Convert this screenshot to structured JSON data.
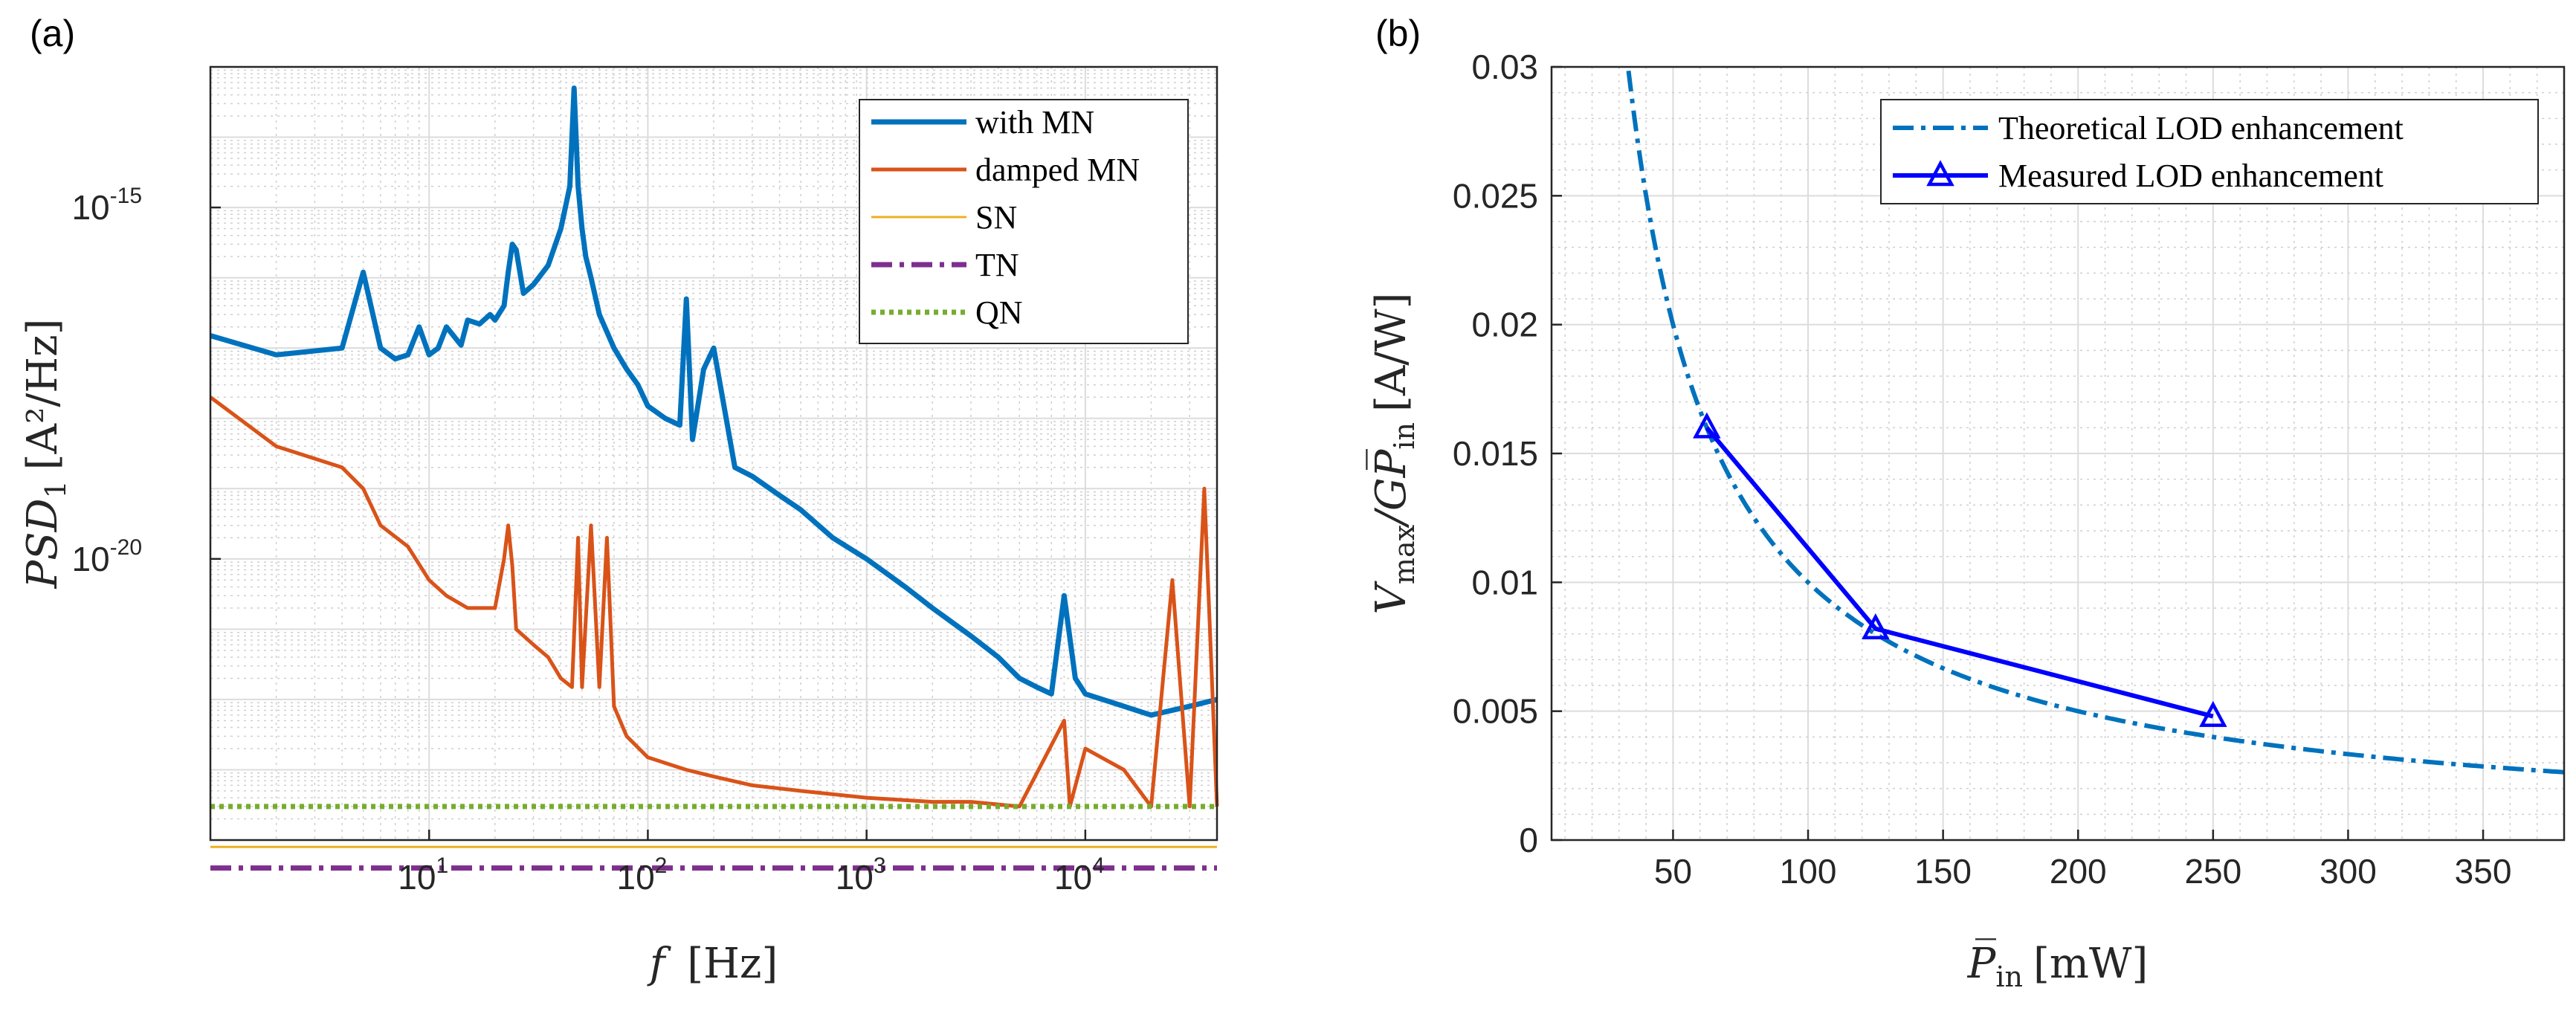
{
  "chart_data": [
    {
      "panel": "(a)",
      "type": "line",
      "xscale": "log",
      "yscale": "log",
      "xlabel_var": "f",
      "xlabel_unit": "[Hz]",
      "ylabel_var": "PSD",
      "ylabel_sub": "1",
      "ylabel_unit": "[A²/Hz]",
      "xlim": [
        1,
        40000
      ],
      "ylim": [
        1e-24,
        1e-13
      ],
      "xticks": [
        {
          "value": 10,
          "base": "10",
          "exp": "1"
        },
        {
          "value": 100,
          "base": "10",
          "exp": "2"
        },
        {
          "value": 1000,
          "base": "10",
          "exp": "3"
        },
        {
          "value": 10000,
          "base": "10",
          "exp": "4"
        }
      ],
      "yticks": [
        {
          "value": 1e-15,
          "base": "10",
          "exp": "-15"
        },
        {
          "value": 1e-20,
          "base": "10",
          "exp": "-20"
        }
      ],
      "grid": true,
      "legend_position": "top-right",
      "series": [
        {
          "name": "with MN",
          "color": "#0072BD",
          "style": "solid",
          "width": 7,
          "x": [
            1,
            2,
            4,
            5,
            6,
            7,
            8,
            9,
            10,
            11,
            12,
            14,
            15,
            17,
            19,
            20,
            22,
            23,
            24,
            25,
            27,
            30,
            35,
            40,
            44,
            46,
            48,
            50,
            52,
            55,
            60,
            70,
            80,
            90,
            100,
            120,
            140,
            150,
            160,
            180,
            200,
            250,
            300,
            400,
            500,
            700,
            1000,
            1500,
            2000,
            3000,
            4000,
            5000,
            6000,
            7000,
            8000,
            9000,
            10000,
            15000,
            20000,
            30000,
            40000
          ],
          "values": [
            1.5e-17,
            8e-18,
            1e-17,
            1.2e-16,
            1e-17,
            7e-18,
            8e-18,
            2e-17,
            8e-18,
            1e-17,
            2e-17,
            1.1e-17,
            2.5e-17,
            2.2e-17,
            3e-17,
            2.5e-17,
            4e-17,
            1.2e-16,
            3e-16,
            2.5e-16,
            6e-17,
            8e-17,
            1.5e-16,
            5e-16,
            2e-15,
            5e-14,
            2e-15,
            5e-16,
            2e-16,
            1e-16,
            3e-17,
            1e-17,
            5e-18,
            3e-18,
            1.5e-18,
            1e-18,
            8e-19,
            5e-17,
            5e-19,
            5e-18,
            1e-17,
            2e-19,
            1.5e-19,
            8e-20,
            5e-20,
            2e-20,
            1e-20,
            4e-21,
            2e-21,
            8e-22,
            4e-22,
            2e-22,
            1.5e-22,
            1.2e-22,
            3e-21,
            2e-22,
            1.2e-22,
            8e-23,
            6e-23,
            8e-23,
            1e-22
          ]
        },
        {
          "name": "damped MN",
          "color": "#D95319",
          "style": "solid",
          "width": 5,
          "x": [
            1,
            2,
            4,
            5,
            6,
            8,
            10,
            12,
            15,
            20,
            22,
            23,
            24,
            25,
            30,
            35,
            40,
            45,
            48,
            50,
            55,
            60,
            65,
            70,
            80,
            100,
            150,
            200,
            300,
            500,
            1000,
            2000,
            3000,
            5000,
            8000,
            8500,
            10000,
            15000,
            20000,
            25000,
            30000,
            35000,
            40000
          ],
          "values": [
            2e-18,
            4e-19,
            2e-19,
            1e-19,
            3e-20,
            1.5e-20,
            5e-21,
            3e-21,
            2e-21,
            2e-21,
            1e-20,
            3e-20,
            8e-21,
            1e-21,
            6e-22,
            4e-22,
            2e-22,
            1.5e-22,
            2e-20,
            1.5e-22,
            3e-20,
            1.5e-22,
            2e-20,
            8e-23,
            3e-23,
            1.5e-23,
            1e-23,
            8e-24,
            6e-24,
            5e-24,
            4e-24,
            3.5e-24,
            3.5e-24,
            3e-24,
            5e-23,
            3e-24,
            2e-23,
            1e-23,
            3e-24,
            5e-21,
            3e-24,
            1e-19,
            3e-24
          ]
        },
        {
          "name": "SN",
          "color": "#EDB120",
          "style": "solid",
          "width": 3,
          "x": [
            1,
            40000
          ],
          "values": [
            8e-25,
            8e-25
          ]
        },
        {
          "name": "TN",
          "color": "#7E2F8E",
          "style": "dashdot",
          "width": 7,
          "x": [
            1,
            40000
          ],
          "values": [
            4e-25,
            4e-25
          ]
        },
        {
          "name": "QN",
          "color": "#77AC30",
          "style": "dotted",
          "width": 7,
          "x": [
            1,
            40000
          ],
          "values": [
            3e-24,
            3e-24
          ]
        }
      ]
    },
    {
      "panel": "(b)",
      "type": "line",
      "xscale": "linear",
      "yscale": "linear",
      "xlabel_var": "P̅",
      "xlabel_sub": "in",
      "xlabel_unit": "[mW]",
      "ylabel_var": "V",
      "ylabel_sub": "max",
      "ylabel_mid": "/GP̅",
      "ylabel_sub2": "in",
      "ylabel_unit": "[A/W]",
      "xlim": [
        5,
        380
      ],
      "ylim": [
        0,
        0.03
      ],
      "xticks": [
        50,
        100,
        150,
        200,
        250,
        300,
        350
      ],
      "yticks": [
        0,
        0.005,
        0.01,
        0.015,
        0.02,
        0.025,
        0.03
      ],
      "ytick_labels": [
        "0",
        "0.005",
        "0.01",
        "0.015",
        "0.02",
        "0.025",
        "0.03"
      ],
      "grid": true,
      "legend_position": "top-right",
      "series": [
        {
          "name": "Theoretical LOD enhancement",
          "color": "#0072BD",
          "style": "dashdot",
          "width": 6,
          "function": "1/P",
          "x_start": 33.5
        },
        {
          "name": "Measured LOD enhancement",
          "color": "#0000FF",
          "style": "solid",
          "marker": "triangle",
          "width": 6,
          "x": [
            62.5,
            125,
            250
          ],
          "values": [
            0.016,
            0.0082,
            0.0048
          ]
        }
      ]
    }
  ]
}
